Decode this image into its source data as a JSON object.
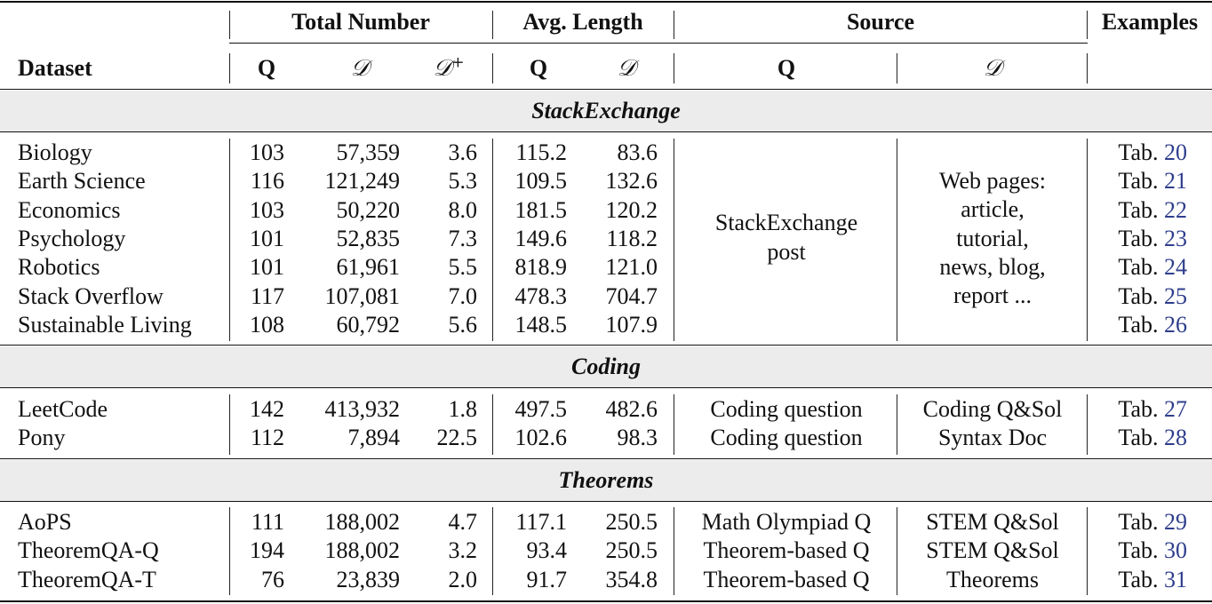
{
  "header": {
    "dataset": "Dataset",
    "total_number": "Total Number",
    "avg_length": "Avg. Length",
    "source": "Source",
    "examples": "Examples",
    "q": "Q",
    "d": "𝒟",
    "d_plus": "𝒟",
    "plus": "+"
  },
  "sections": [
    {
      "title": "StackExchange",
      "source_q": [
        "StackExchange",
        "post"
      ],
      "source_d": [
        "Web pages:",
        "article,",
        "tutorial,",
        "news, blog,",
        "report ..."
      ],
      "rows": [
        {
          "name": "Biology",
          "q": "103",
          "d": "57,359",
          "dplus": "3.6",
          "len_q": "115.2",
          "len_d": "83.6",
          "ex_prefix": "Tab.",
          "ex_num": "20"
        },
        {
          "name": "Earth Science",
          "q": "116",
          "d": "121,249",
          "dplus": "5.3",
          "len_q": "109.5",
          "len_d": "132.6",
          "ex_prefix": "Tab.",
          "ex_num": "21"
        },
        {
          "name": "Economics",
          "q": "103",
          "d": "50,220",
          "dplus": "8.0",
          "len_q": "181.5",
          "len_d": "120.2",
          "ex_prefix": "Tab.",
          "ex_num": "22"
        },
        {
          "name": "Psychology",
          "q": "101",
          "d": "52,835",
          "dplus": "7.3",
          "len_q": "149.6",
          "len_d": "118.2",
          "ex_prefix": "Tab.",
          "ex_num": "23"
        },
        {
          "name": "Robotics",
          "q": "101",
          "d": "61,961",
          "dplus": "5.5",
          "len_q": "818.9",
          "len_d": "121.0",
          "ex_prefix": "Tab.",
          "ex_num": "24"
        },
        {
          "name": "Stack Overflow",
          "q": "117",
          "d": "107,081",
          "dplus": "7.0",
          "len_q": "478.3",
          "len_d": "704.7",
          "ex_prefix": "Tab.",
          "ex_num": "25"
        },
        {
          "name": "Sustainable Living",
          "q": "108",
          "d": "60,792",
          "dplus": "5.6",
          "len_q": "148.5",
          "len_d": "107.9",
          "ex_prefix": "Tab.",
          "ex_num": "26"
        }
      ]
    },
    {
      "title": "Coding",
      "rows": [
        {
          "name": "LeetCode",
          "q": "142",
          "d": "413,932",
          "dplus": "1.8",
          "len_q": "497.5",
          "len_d": "482.6",
          "src_q": "Coding question",
          "src_d": "Coding Q&Sol",
          "ex_prefix": "Tab.",
          "ex_num": "27"
        },
        {
          "name": "Pony",
          "q": "112",
          "d": "7,894",
          "dplus": "22.5",
          "len_q": "102.6",
          "len_d": "98.3",
          "src_q": "Coding question",
          "src_d": "Syntax Doc",
          "ex_prefix": "Tab.",
          "ex_num": "28"
        }
      ]
    },
    {
      "title": "Theorems",
      "rows": [
        {
          "name": "AoPS",
          "q": "111",
          "d": "188,002",
          "dplus": "4.7",
          "len_q": "117.1",
          "len_d": "250.5",
          "src_q": "Math Olympiad Q",
          "src_d": "STEM Q&Sol",
          "ex_prefix": "Tab.",
          "ex_num": "29"
        },
        {
          "name": "TheoremQA-Q",
          "q": "194",
          "d": "188,002",
          "dplus": "3.2",
          "len_q": "93.4",
          "len_d": "250.5",
          "src_q": "Theorem-based Q",
          "src_d": "STEM Q&Sol",
          "ex_prefix": "Tab.",
          "ex_num": "30"
        },
        {
          "name": "TheoremQA-T",
          "q": "76",
          "d": "23,839",
          "dplus": "2.0",
          "len_q": "91.7",
          "len_d": "354.8",
          "src_q": "Theorem-based Q",
          "src_d": "Theorems",
          "ex_prefix": "Tab.",
          "ex_num": "31"
        }
      ]
    }
  ]
}
